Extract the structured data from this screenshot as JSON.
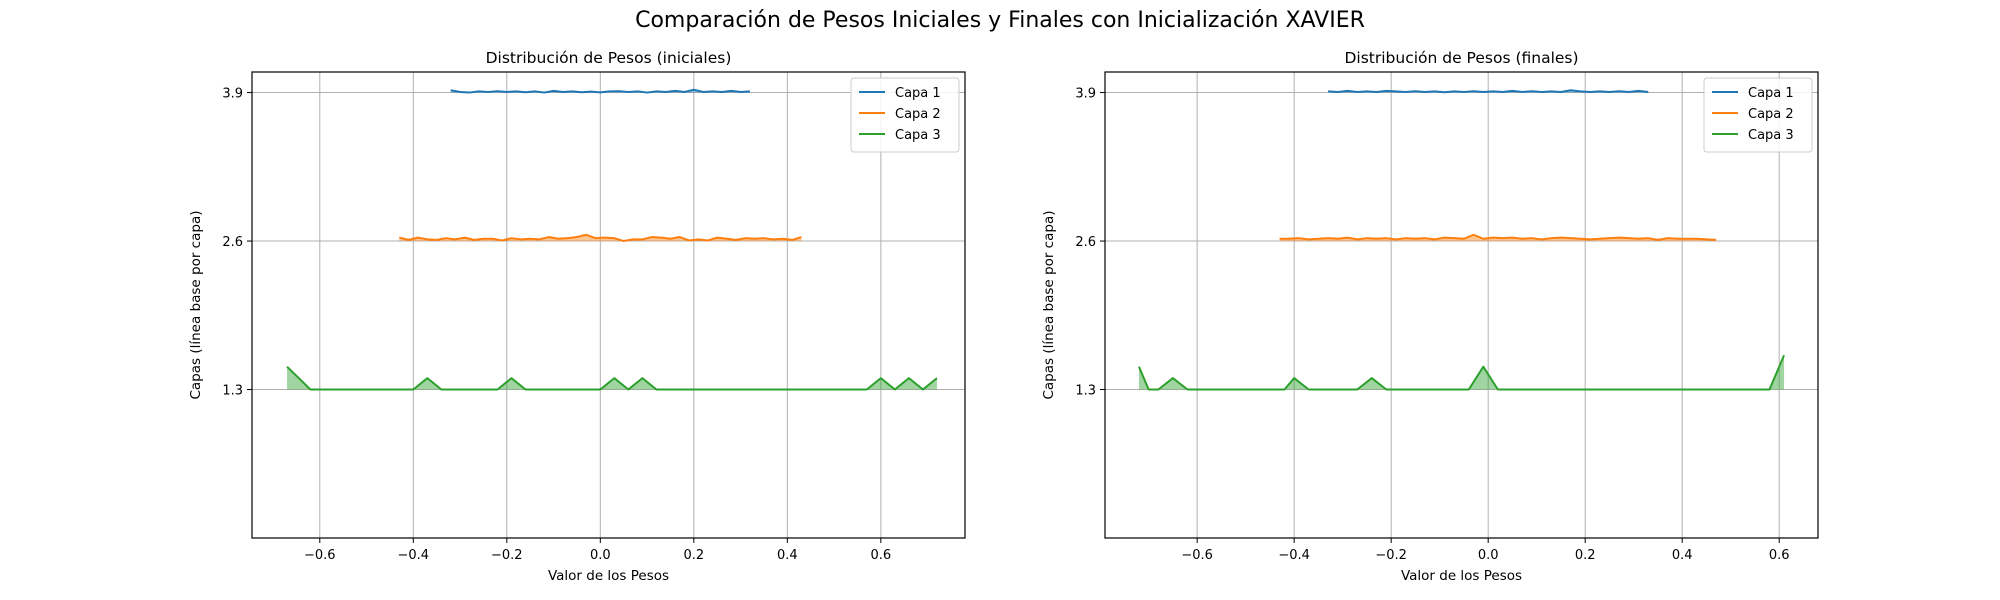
{
  "suptitle": "Comparación de Pesos Iniciales y Finales con Inicialización XAVIER",
  "colors": {
    "capa1": "#1f77b4",
    "capa2": "#ff7f0e",
    "capa3": "#2ca02c",
    "grid": "#b0b0b0"
  },
  "chart_data": [
    {
      "type": "area",
      "title": "Distribución de Pesos (iniciales)",
      "xlabel": "Valor de los Pesos",
      "ylabel": "Capas (línea base por capa)",
      "xlim": [
        -0.745,
        0.78
      ],
      "ylim": [
        0.0,
        4.08
      ],
      "xticks": [
        -0.6,
        -0.4,
        -0.2,
        0.0,
        0.2,
        0.4,
        0.6
      ],
      "xtick_labels": [
        "−0.6",
        "−0.4",
        "−0.2",
        "0.0",
        "0.2",
        "0.4",
        "0.6"
      ],
      "yticks": [
        1.3,
        2.6,
        3.9
      ],
      "ytick_labels": [
        "1.3",
        "2.6",
        "3.9"
      ],
      "grid": true,
      "legend": "top-right",
      "series": [
        {
          "name": "Capa 1",
          "baseline": 3.9,
          "x": [
            -0.32,
            -0.3,
            -0.28,
            -0.26,
            -0.24,
            -0.22,
            -0.2,
            -0.18,
            -0.16,
            -0.14,
            -0.12,
            -0.1,
            -0.08,
            -0.06,
            -0.04,
            -0.02,
            0.0,
            0.02,
            0.04,
            0.06,
            0.08,
            0.1,
            0.12,
            0.14,
            0.16,
            0.18,
            0.2,
            0.22,
            0.24,
            0.26,
            0.28,
            0.3,
            0.32
          ],
          "y": [
            3.92,
            3.905,
            3.9,
            3.91,
            3.905,
            3.912,
            3.905,
            3.91,
            3.903,
            3.91,
            3.9,
            3.915,
            3.905,
            3.91,
            3.903,
            3.908,
            3.902,
            3.91,
            3.912,
            3.905,
            3.91,
            3.9,
            3.91,
            3.905,
            3.915,
            3.905,
            3.925,
            3.905,
            3.91,
            3.905,
            3.915,
            3.905,
            3.91
          ]
        },
        {
          "name": "Capa 2",
          "baseline": 2.6,
          "x": [
            -0.43,
            -0.41,
            -0.39,
            -0.37,
            -0.35,
            -0.33,
            -0.31,
            -0.29,
            -0.27,
            -0.25,
            -0.23,
            -0.21,
            -0.19,
            -0.17,
            -0.15,
            -0.13,
            -0.11,
            -0.09,
            -0.07,
            -0.05,
            -0.03,
            -0.01,
            0.01,
            0.03,
            0.05,
            0.07,
            0.09,
            0.11,
            0.13,
            0.15,
            0.17,
            0.19,
            0.21,
            0.23,
            0.25,
            0.27,
            0.29,
            0.31,
            0.33,
            0.35,
            0.37,
            0.39,
            0.41,
            0.43
          ],
          "y": [
            2.63,
            2.61,
            2.63,
            2.615,
            2.61,
            2.625,
            2.615,
            2.63,
            2.61,
            2.62,
            2.62,
            2.605,
            2.625,
            2.615,
            2.62,
            2.615,
            2.635,
            2.62,
            2.625,
            2.635,
            2.655,
            2.625,
            2.63,
            2.625,
            2.6,
            2.615,
            2.615,
            2.635,
            2.63,
            2.62,
            2.635,
            2.605,
            2.615,
            2.605,
            2.63,
            2.62,
            2.61,
            2.625,
            2.62,
            2.625,
            2.615,
            2.62,
            2.61,
            2.635
          ]
        },
        {
          "name": "Capa 3",
          "baseline": 1.3,
          "x": [
            -0.67,
            -0.62,
            -0.42,
            -0.4,
            -0.37,
            -0.34,
            -0.3,
            -0.22,
            -0.19,
            -0.16,
            -0.03,
            0.0,
            0.03,
            0.06,
            0.09,
            0.12,
            0.57,
            0.6,
            0.63,
            0.66,
            0.69,
            0.72
          ],
          "y": [
            1.5,
            1.3,
            1.3,
            1.3,
            1.4,
            1.3,
            1.3,
            1.3,
            1.4,
            1.3,
            1.3,
            1.3,
            1.4,
            1.3,
            1.4,
            1.3,
            1.3,
            1.4,
            1.3,
            1.4,
            1.3,
            1.4
          ]
        }
      ]
    },
    {
      "type": "area",
      "title": "Distribución de Pesos (finales)",
      "xlabel": "Valor de los Pesos",
      "ylabel": "Capas (línea base por capa)",
      "xlim": [
        -0.79,
        0.68
      ],
      "ylim": [
        0.0,
        4.08
      ],
      "xticks": [
        -0.6,
        -0.4,
        -0.2,
        0.0,
        0.2,
        0.4,
        0.6
      ],
      "xtick_labels": [
        "−0.6",
        "−0.4",
        "−0.2",
        "0.0",
        "0.2",
        "0.4",
        "0.6"
      ],
      "yticks": [
        1.3,
        2.6,
        3.9
      ],
      "ytick_labels": [
        "1.3",
        "2.6",
        "3.9"
      ],
      "grid": true,
      "legend": "top-right",
      "series": [
        {
          "name": "Capa 1",
          "baseline": 3.9,
          "x": [
            -0.33,
            -0.31,
            -0.29,
            -0.27,
            -0.25,
            -0.23,
            -0.21,
            -0.19,
            -0.17,
            -0.15,
            -0.13,
            -0.11,
            -0.09,
            -0.07,
            -0.05,
            -0.03,
            -0.01,
            0.01,
            0.03,
            0.05,
            0.07,
            0.09,
            0.11,
            0.13,
            0.15,
            0.17,
            0.19,
            0.21,
            0.23,
            0.25,
            0.27,
            0.29,
            0.31,
            0.33
          ],
          "y": [
            3.91,
            3.905,
            3.915,
            3.905,
            3.91,
            3.905,
            3.915,
            3.91,
            3.905,
            3.912,
            3.905,
            3.91,
            3.903,
            3.91,
            3.905,
            3.912,
            3.905,
            3.91,
            3.905,
            3.915,
            3.905,
            3.912,
            3.905,
            3.91,
            3.905,
            3.92,
            3.91,
            3.905,
            3.91,
            3.905,
            3.912,
            3.905,
            3.915,
            3.905
          ]
        },
        {
          "name": "Capa 2",
          "baseline": 2.6,
          "x": [
            -0.43,
            -0.41,
            -0.39,
            -0.37,
            -0.35,
            -0.33,
            -0.31,
            -0.29,
            -0.27,
            -0.25,
            -0.23,
            -0.21,
            -0.19,
            -0.17,
            -0.15,
            -0.13,
            -0.11,
            -0.09,
            -0.07,
            -0.05,
            -0.03,
            -0.01,
            0.01,
            0.03,
            0.05,
            0.07,
            0.09,
            0.11,
            0.13,
            0.15,
            0.17,
            0.19,
            0.21,
            0.23,
            0.25,
            0.27,
            0.29,
            0.31,
            0.33,
            0.35,
            0.37,
            0.39,
            0.41,
            0.43,
            0.45,
            0.47
          ],
          "y": [
            2.62,
            2.62,
            2.625,
            2.615,
            2.62,
            2.625,
            2.62,
            2.63,
            2.615,
            2.625,
            2.62,
            2.625,
            2.615,
            2.625,
            2.62,
            2.625,
            2.615,
            2.63,
            2.625,
            2.62,
            2.655,
            2.62,
            2.63,
            2.625,
            2.63,
            2.62,
            2.625,
            2.615,
            2.625,
            2.63,
            2.625,
            2.62,
            2.615,
            2.62,
            2.625,
            2.63,
            2.625,
            2.62,
            2.625,
            2.61,
            2.625,
            2.62,
            2.62,
            2.62,
            2.615,
            2.61
          ]
        },
        {
          "name": "Capa 3",
          "baseline": 1.3,
          "x": [
            -0.72,
            -0.7,
            -0.68,
            -0.65,
            -0.62,
            -0.42,
            -0.4,
            -0.37,
            -0.27,
            -0.24,
            -0.21,
            -0.04,
            -0.01,
            0.02,
            0.58,
            0.61
          ],
          "y": [
            1.5,
            1.3,
            1.3,
            1.4,
            1.3,
            1.3,
            1.4,
            1.3,
            1.3,
            1.4,
            1.3,
            1.3,
            1.5,
            1.3,
            1.3,
            1.6
          ]
        }
      ]
    }
  ]
}
